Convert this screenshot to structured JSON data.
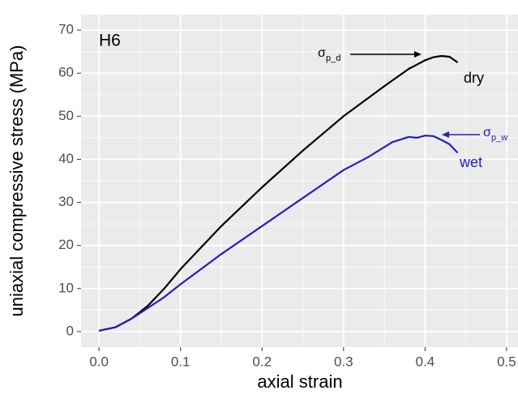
{
  "chart_data": {
    "type": "line",
    "x_label": "axial strain",
    "y_label": "uniaxial compressive stress (MPa)",
    "xlim": [
      -0.022,
      0.514
    ],
    "ylim": [
      -3.6,
      73.6
    ],
    "xticks": [
      {
        "value": 0,
        "label": "0.0"
      },
      0.1,
      0.2,
      0.3,
      0.4,
      0.5
    ],
    "yticks": [
      0,
      10,
      20,
      30,
      40,
      50,
      60,
      70
    ],
    "grid": true,
    "panel_color": "#ebebeb",
    "series": [
      {
        "name": "dry",
        "color": "#000000",
        "x": [
          0,
          0.02,
          0.04,
          0.06,
          0.08,
          0.1,
          0.12,
          0.15,
          0.2,
          0.25,
          0.3,
          0.35,
          0.38,
          0.4,
          0.41,
          0.42,
          0.43,
          0.44
        ],
        "values": [
          0.2,
          1,
          3,
          6,
          10,
          14.5,
          18.5,
          24.5,
          33.5,
          42,
          50,
          57,
          61,
          63,
          63.7,
          64,
          63.8,
          62.5
        ]
      },
      {
        "name": "wet",
        "color": "#2020c8",
        "x": [
          0,
          0.02,
          0.04,
          0.06,
          0.08,
          0.1,
          0.15,
          0.2,
          0.25,
          0.3,
          0.33,
          0.36,
          0.38,
          0.39,
          0.4,
          0.41,
          0.42,
          0.43,
          0.44
        ],
        "values": [
          0.2,
          1,
          3,
          5.5,
          8,
          11,
          18,
          24.5,
          31,
          37.5,
          40.5,
          44,
          45.2,
          45,
          45.5,
          45.4,
          44.5,
          43.5,
          41.5
        ]
      }
    ],
    "annotations": [
      {
        "text": "H6"
      },
      {
        "text": "σ",
        "subscript": "p_d"
      },
      {
        "text": "σ",
        "subscript": "p_w"
      }
    ]
  }
}
